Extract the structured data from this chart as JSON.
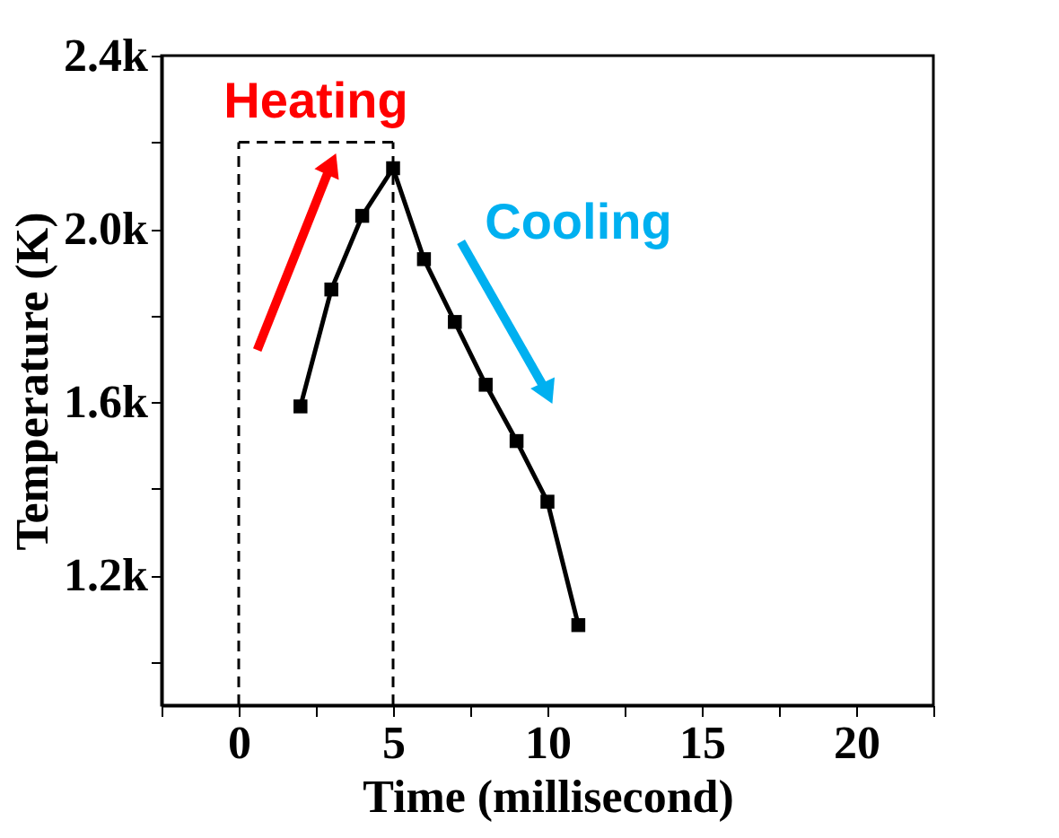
{
  "chart_data": {
    "type": "line",
    "xlabel": "Time (millisecond)",
    "ylabel": "Temperature (K)",
    "x": [
      2,
      3,
      4,
      5,
      6,
      7,
      8,
      9,
      10,
      11
    ],
    "series": [
      {
        "color": "#000000",
        "values": [
          1590,
          1860,
          2030,
          2140,
          1930,
          1785,
          1640,
          1510,
          1370,
          1085
        ]
      }
    ],
    "xlim": [
      -2.5,
      22.5
    ],
    "xticks": [
      {
        "value": -2.5,
        "label": null
      },
      0,
      {
        "value": 2.5,
        "label": null
      },
      5,
      {
        "value": 7.5,
        "label": null
      },
      10,
      {
        "value": 12.5,
        "label": null
      },
      15,
      {
        "value": 17.5,
        "label": null
      },
      20,
      {
        "value": 22.5,
        "label": null
      }
    ],
    "ylim": [
      900,
      2400
    ],
    "yticks": [
      {
        "value": 1000,
        "label": null
      },
      {
        "value": 1200,
        "label": "1.2k"
      },
      {
        "value": 1400,
        "label": null
      },
      {
        "value": 1600,
        "label": "1.6k"
      },
      {
        "value": 1800,
        "label": null
      },
      {
        "value": 2000,
        "label": "2.0k"
      },
      {
        "value": 2200,
        "label": null
      },
      {
        "value": 2400,
        "label": "2.4k"
      }
    ],
    "ref_lines": [
      {
        "axis": "x",
        "value": 0,
        "line_style": "dashed"
      },
      {
        "axis": "x",
        "value": 5,
        "line_style": "dashed"
      }
    ],
    "annotations": [
      "Heating",
      "Cooling"
    ],
    "marker": "square",
    "line_style": "solid",
    "grid": false
  }
}
